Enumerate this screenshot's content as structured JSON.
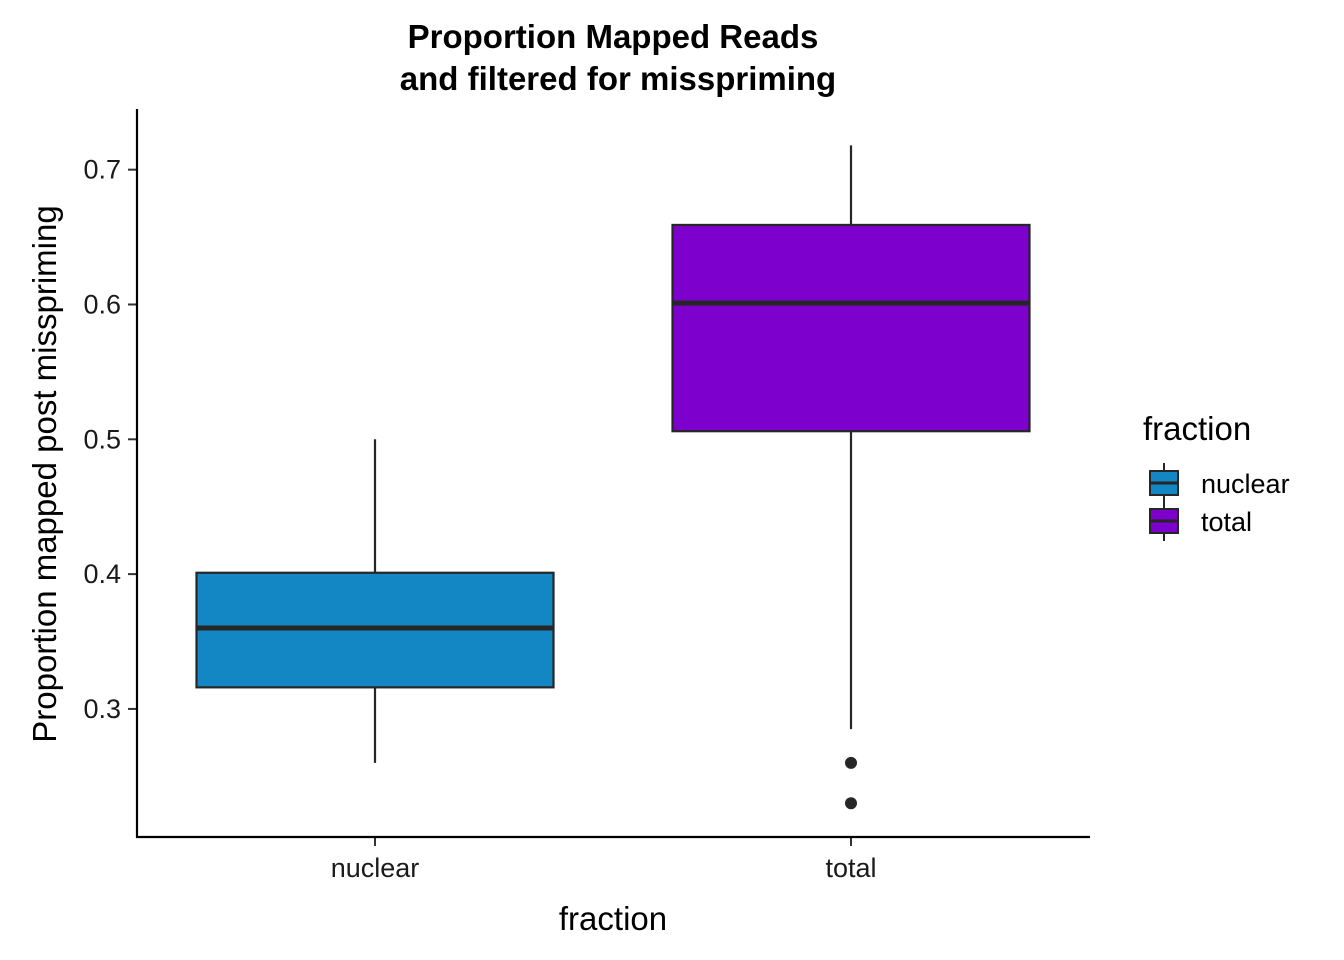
{
  "chart_data": {
    "type": "boxplot",
    "title": [
      "Proportion Mapped Reads",
      "and filtered for misspriming"
    ],
    "xlabel": "fraction",
    "ylabel": "Proportion mapped post misspriming",
    "categories": [
      "nuclear",
      "total"
    ],
    "ylim": [
      0.205,
      0.745
    ],
    "yticks": [
      0.3,
      0.4,
      0.5,
      0.6,
      0.7
    ],
    "ytick_labels": [
      "0.3",
      "0.4",
      "0.5",
      "0.6",
      "0.7"
    ],
    "boxes": [
      {
        "category": "nuclear",
        "whisker_low": 0.26,
        "q1": 0.316,
        "median": 0.36,
        "q3": 0.401,
        "whisker_high": 0.5,
        "outliers": [],
        "color": "#1287C4"
      },
      {
        "category": "total",
        "whisker_low": 0.285,
        "q1": 0.506,
        "median": 0.601,
        "q3": 0.659,
        "whisker_high": 0.718,
        "outliers": [
          0.26,
          0.23
        ],
        "color": "#7D00CC"
      }
    ],
    "legend": {
      "title": "fraction",
      "position": "right",
      "entries": [
        {
          "label": "nuclear",
          "color": "#1287C4"
        },
        {
          "label": "total",
          "color": "#7D00CC"
        }
      ]
    },
    "grid": false
  }
}
